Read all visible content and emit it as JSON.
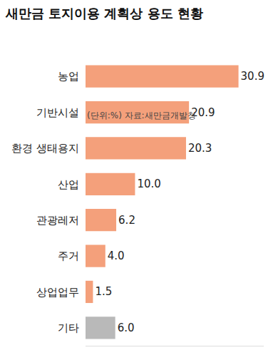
{
  "chart_data": {
    "type": "bar",
    "orientation": "horizontal",
    "title": "새만금 토지이용 계획상 용도 현황",
    "subtitle": "(단위:%) 자료:새만금개발청",
    "categories": [
      "농업",
      "기반시설",
      "환경 생태용지",
      "산업",
      "관광레저",
      "주거",
      "상업업무",
      "기타"
    ],
    "values": [
      30.9,
      20.9,
      20.3,
      10.0,
      6.2,
      4.0,
      1.5,
      6.0
    ],
    "value_labels": [
      "30.9",
      "20.9",
      "20.3",
      "10.0",
      "6.2",
      "4.0",
      "1.5",
      "6.0"
    ],
    "colors": [
      "#f4a07b",
      "#f4a07b",
      "#f4a07b",
      "#f4a07b",
      "#f4a07b",
      "#f4a07b",
      "#f4a07b",
      "#b9b9b9"
    ],
    "xlim": [
      0,
      36
    ],
    "data_labels": true,
    "tick_labels": "y",
    "grid": false
  }
}
